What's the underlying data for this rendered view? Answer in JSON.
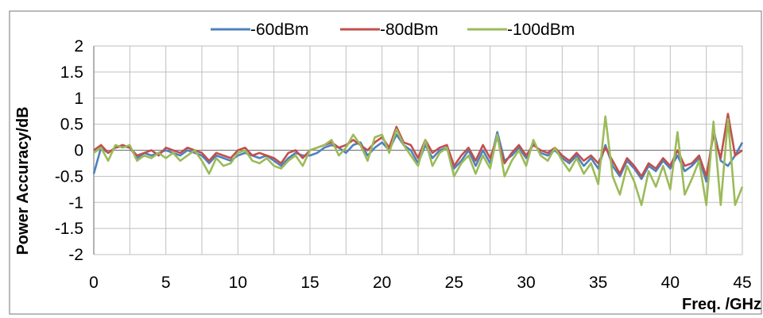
{
  "chart_data": {
    "type": "line",
    "title": "",
    "xlabel": "Freq. /GHz",
    "ylabel": "Power Accuracy/dB",
    "xlim": [
      0,
      45
    ],
    "ylim": [
      -2,
      2
    ],
    "x_ticks": [
      "0",
      "5",
      "10",
      "15",
      "20",
      "25",
      "30",
      "35",
      "40",
      "45"
    ],
    "y_ticks": [
      "2",
      "1.5",
      "1",
      "0.5",
      "0",
      "-0.5",
      "-1",
      "-1.5",
      "-2"
    ],
    "grid": true,
    "legend_position": "top",
    "series": [
      {
        "name": "-60dBm",
        "color": "#4F81BD",
        "x": [
          0,
          0.5,
          1,
          1.5,
          2,
          2.5,
          3,
          3.5,
          4,
          4.5,
          5,
          5.5,
          6,
          6.5,
          7,
          7.5,
          8,
          8.5,
          9,
          9.5,
          10,
          10.5,
          11,
          11.5,
          12,
          12.5,
          13,
          13.5,
          14,
          14.5,
          15,
          15.5,
          16,
          16.5,
          17,
          17.5,
          18,
          18.5,
          19,
          19.5,
          20,
          20.5,
          21,
          21.5,
          22,
          22.5,
          23,
          23.5,
          24,
          24.5,
          25,
          25.5,
          26,
          26.5,
          27,
          27.5,
          28,
          28.5,
          29,
          29.5,
          30,
          30.5,
          31,
          31.5,
          32,
          32.5,
          33,
          33.5,
          34,
          34.5,
          35,
          35.5,
          36,
          36.5,
          37,
          37.5,
          38,
          38.5,
          39,
          39.5,
          40,
          40.5,
          41,
          41.5,
          42,
          42.5,
          43,
          43.5,
          44,
          44.5,
          45
        ],
        "y": [
          -0.45,
          0.05,
          -0.05,
          0.05,
          0.08,
          0.05,
          -0.15,
          -0.05,
          -0.1,
          -0.05,
          0.0,
          -0.05,
          -0.1,
          0.0,
          -0.05,
          -0.1,
          -0.25,
          -0.1,
          -0.15,
          -0.2,
          -0.1,
          -0.05,
          -0.1,
          -0.15,
          -0.1,
          -0.2,
          -0.3,
          -0.15,
          -0.05,
          -0.1,
          -0.1,
          -0.05,
          0.05,
          0.1,
          0.05,
          -0.05,
          0.1,
          0.15,
          -0.1,
          0.05,
          0.15,
          0.0,
          0.3,
          0.1,
          0.0,
          -0.25,
          0.1,
          -0.15,
          0.0,
          0.05,
          -0.35,
          -0.2,
          0.0,
          -0.3,
          0.0,
          -0.25,
          0.35,
          -0.2,
          -0.1,
          0.05,
          -0.15,
          0.15,
          -0.05,
          -0.1,
          0.0,
          -0.15,
          -0.25,
          -0.1,
          -0.3,
          -0.15,
          -0.35,
          0.1,
          -0.3,
          -0.5,
          -0.2,
          -0.35,
          -0.55,
          -0.3,
          -0.4,
          -0.2,
          -0.35,
          -0.1,
          -0.4,
          -0.3,
          -0.15,
          -0.6,
          0.4,
          -0.2,
          -0.3,
          -0.1,
          0.15
        ]
      },
      {
        "name": "-80dBm",
        "color": "#C0504D",
        "x": [
          0,
          0.5,
          1,
          1.5,
          2,
          2.5,
          3,
          3.5,
          4,
          4.5,
          5,
          5.5,
          6,
          6.5,
          7,
          7.5,
          8,
          8.5,
          9,
          9.5,
          10,
          10.5,
          11,
          11.5,
          12,
          12.5,
          13,
          13.5,
          14,
          14.5,
          15,
          15.5,
          16,
          16.5,
          17,
          17.5,
          18,
          18.5,
          19,
          19.5,
          20,
          20.5,
          21,
          21.5,
          22,
          22.5,
          23,
          23.5,
          24,
          24.5,
          25,
          25.5,
          26,
          26.5,
          27,
          27.5,
          28,
          28.5,
          29,
          29.5,
          30,
          30.5,
          31,
          31.5,
          32,
          32.5,
          33,
          33.5,
          34,
          34.5,
          35,
          35.5,
          36,
          36.5,
          37,
          37.5,
          38,
          38.5,
          39,
          39.5,
          40,
          40.5,
          41,
          41.5,
          42,
          42.5,
          43,
          43.5,
          44,
          44.5,
          45
        ],
        "y": [
          0.0,
          0.1,
          -0.05,
          0.05,
          0.1,
          0.05,
          -0.1,
          -0.05,
          0.0,
          -0.1,
          0.05,
          0.0,
          -0.05,
          0.05,
          0.0,
          -0.05,
          -0.2,
          -0.05,
          -0.1,
          -0.15,
          0.0,
          0.05,
          -0.1,
          -0.05,
          -0.1,
          -0.15,
          -0.25,
          -0.05,
          0.0,
          -0.15,
          0.0,
          0.05,
          0.1,
          0.15,
          0.05,
          0.1,
          0.2,
          0.1,
          0.0,
          0.15,
          0.25,
          0.05,
          0.45,
          0.15,
          0.1,
          -0.15,
          0.2,
          -0.05,
          0.05,
          0.1,
          -0.3,
          -0.1,
          0.05,
          -0.2,
          0.1,
          -0.15,
          0.25,
          -0.25,
          -0.05,
          0.1,
          -0.1,
          0.1,
          0.0,
          -0.05,
          0.05,
          -0.1,
          -0.2,
          -0.05,
          -0.2,
          -0.1,
          -0.25,
          0.05,
          -0.2,
          -0.45,
          -0.15,
          -0.3,
          -0.5,
          -0.25,
          -0.35,
          -0.15,
          -0.3,
          0.0,
          -0.3,
          -0.25,
          -0.1,
          -0.5,
          0.3,
          -0.15,
          0.7,
          -0.1,
          0.0
        ]
      },
      {
        "name": "-100dBm",
        "color": "#9BBB59",
        "x": [
          0,
          0.5,
          1,
          1.5,
          2,
          2.5,
          3,
          3.5,
          4,
          4.5,
          5,
          5.5,
          6,
          6.5,
          7,
          7.5,
          8,
          8.5,
          9,
          9.5,
          10,
          10.5,
          11,
          11.5,
          12,
          12.5,
          13,
          13.5,
          14,
          14.5,
          15,
          15.5,
          16,
          16.5,
          17,
          17.5,
          18,
          18.5,
          19,
          19.5,
          20,
          20.5,
          21,
          21.5,
          22,
          22.5,
          23,
          23.5,
          24,
          24.5,
          25,
          25.5,
          26,
          26.5,
          27,
          27.5,
          28,
          28.5,
          29,
          29.5,
          30,
          30.5,
          31,
          31.5,
          32,
          32.5,
          33,
          33.5,
          34,
          34.5,
          35,
          35.5,
          36,
          36.5,
          37,
          37.5,
          38,
          38.5,
          39,
          39.5,
          40,
          40.5,
          41,
          41.5,
          42,
          42.5,
          43,
          43.5,
          44,
          44.5,
          45
        ],
        "y": [
          -0.05,
          0.05,
          -0.2,
          0.1,
          0.05,
          0.1,
          -0.2,
          -0.1,
          -0.15,
          -0.05,
          -0.15,
          -0.05,
          -0.2,
          -0.1,
          0.0,
          -0.2,
          -0.45,
          -0.15,
          -0.3,
          -0.25,
          -0.05,
          0.0,
          -0.2,
          -0.25,
          -0.15,
          -0.3,
          -0.35,
          -0.2,
          -0.1,
          -0.3,
          0.0,
          0.05,
          0.1,
          0.2,
          -0.1,
          0.05,
          0.3,
          0.1,
          -0.2,
          0.25,
          0.3,
          -0.05,
          0.4,
          0.1,
          -0.1,
          -0.3,
          0.2,
          -0.3,
          -0.05,
          0.05,
          -0.5,
          -0.25,
          -0.1,
          -0.45,
          -0.1,
          -0.35,
          0.3,
          -0.5,
          -0.2,
          0.0,
          -0.3,
          0.2,
          -0.1,
          -0.2,
          0.05,
          -0.2,
          -0.4,
          -0.15,
          -0.45,
          -0.25,
          -0.65,
          0.65,
          -0.5,
          -0.85,
          -0.3,
          -0.6,
          -1.05,
          -0.4,
          -0.7,
          -0.3,
          -0.75,
          0.35,
          -0.85,
          -0.55,
          -0.2,
          -1.05,
          0.55,
          -1.05,
          0.6,
          -1.05,
          -0.7
        ]
      }
    ]
  }
}
